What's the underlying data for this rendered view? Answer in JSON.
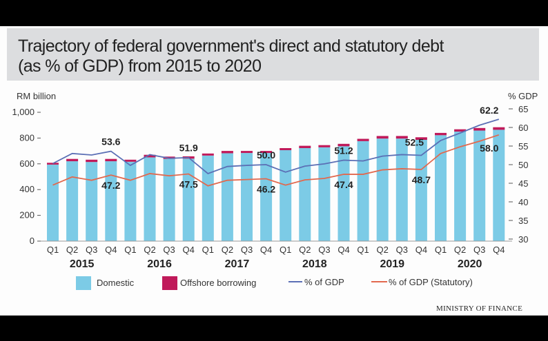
{
  "title_line1": "Trajectory of federal government's direct and statutory debt",
  "title_line2": "(as % of GDP) from 2015 to 2020",
  "source": "MINISTRY OF FINANCE",
  "colors": {
    "domestic": "#7ccbe6",
    "offshore": "#c01a5a",
    "gdp_line": "#5b6fb5",
    "statutory_line": "#e2684d",
    "title_bg": "#dcdddf"
  },
  "chart_data": {
    "type": "bar",
    "title": "Trajectory of federal government's direct and statutory debt (as % of GDP) from 2015 to 2020",
    "ylabel": "RM billion",
    "y2label": "% GDP",
    "ylim": [
      0,
      1000
    ],
    "y2lim": [
      30,
      65
    ],
    "yticks": [
      "0",
      "200",
      "400",
      "600",
      "800",
      "1,000"
    ],
    "ytick_values": [
      0,
      200,
      400,
      600,
      800,
      1000
    ],
    "y2ticks": [
      "30",
      "35",
      "40",
      "45",
      "50",
      "55",
      "60",
      "65"
    ],
    "y2tick_values": [
      30,
      35,
      40,
      45,
      50,
      55,
      60,
      65
    ],
    "categories": [
      "Q1",
      "Q2",
      "Q3",
      "Q4",
      "Q1",
      "Q2",
      "Q3",
      "Q4",
      "Q1",
      "Q2",
      "Q3",
      "Q4",
      "Q1",
      "Q2",
      "Q3",
      "Q4",
      "Q1",
      "Q2",
      "Q3",
      "Q4",
      "Q1",
      "Q2",
      "Q3",
      "Q4"
    ],
    "years": [
      "2015",
      "2016",
      "2017",
      "2018",
      "2019",
      "2020"
    ],
    "series": [
      {
        "name": "Domestic",
        "kind": "bar",
        "values": [
          594,
          620,
          614,
          620,
          616,
          650,
          638,
          640,
          664,
          682,
          684,
          684,
          706,
          722,
          728,
          736,
          776,
          796,
          796,
          786,
          822,
          850,
          858,
          864
        ]
      },
      {
        "name": "Offshore borrowing",
        "kind": "bar",
        "values": [
          14,
          18,
          18,
          18,
          16,
          20,
          18,
          18,
          16,
          18,
          16,
          16,
          16,
          18,
          17,
          19,
          18,
          20,
          20,
          20,
          18,
          18,
          20,
          20
        ]
      },
      {
        "name": "% of GDP",
        "kind": "line",
        "axis": "right",
        "values": [
          50.3,
          53.0,
          52.6,
          53.6,
          49.8,
          52.7,
          51.7,
          51.9,
          47.6,
          49.5,
          49.8,
          50.0,
          48.0,
          49.6,
          50.2,
          51.2,
          51.0,
          52.3,
          52.7,
          52.5,
          56.5,
          58.5,
          60.6,
          62.2
        ]
      },
      {
        "name": "% of GDP (Statutory)",
        "kind": "line",
        "axis": "right",
        "values": [
          44.5,
          46.7,
          45.8,
          47.2,
          45.8,
          47.6,
          47.0,
          47.5,
          44.3,
          45.8,
          46.0,
          46.2,
          44.5,
          45.9,
          46.3,
          47.4,
          47.4,
          48.6,
          48.9,
          48.7,
          53.0,
          54.8,
          56.3,
          58.0
        ]
      }
    ],
    "annotations": [
      {
        "series": "% of GDP",
        "index": 3,
        "text": "53.6"
      },
      {
        "series": "% of GDP (Statutory)",
        "index": 3,
        "text": "47.2"
      },
      {
        "series": "% of GDP",
        "index": 7,
        "text": "51.9"
      },
      {
        "series": "% of GDP (Statutory)",
        "index": 7,
        "text": "47.5"
      },
      {
        "series": "% of GDP",
        "index": 11,
        "text": "50.0"
      },
      {
        "series": "% of GDP (Statutory)",
        "index": 11,
        "text": "46.2"
      },
      {
        "series": "% of GDP",
        "index": 15,
        "text": "51.2"
      },
      {
        "series": "% of GDP (Statutory)",
        "index": 15,
        "text": "47.4"
      },
      {
        "series": "% of GDP",
        "index": 19,
        "text": "52.5"
      },
      {
        "series": "% of GDP (Statutory)",
        "index": 19,
        "text": "48.7"
      },
      {
        "series": "% of GDP",
        "index": 23,
        "text": "62.2"
      },
      {
        "series": "% of GDP (Statutory)",
        "index": 23,
        "text": "58.0"
      }
    ],
    "legend": [
      "Domestic",
      "Offshore borrowing",
      "% of GDP",
      "% of GDP (Statutory)"
    ],
    "legend_position": "bottom",
    "grid": false
  }
}
